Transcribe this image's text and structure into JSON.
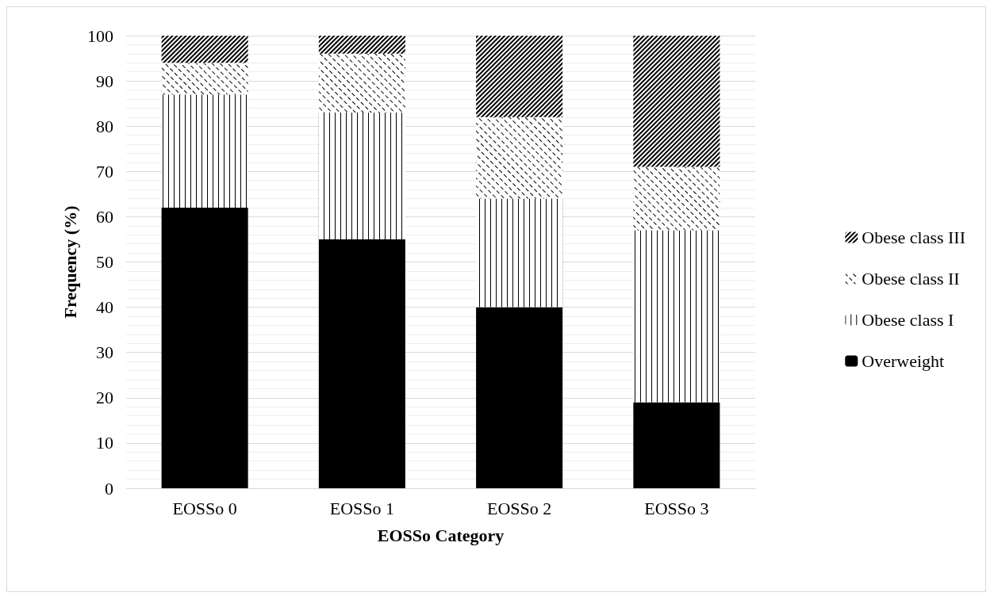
{
  "chart_data": {
    "type": "bar",
    "stacked": true,
    "xlabel": "EOSSo Category",
    "ylabel": "Frequency (%)",
    "categories": [
      "EOSSo 0",
      "EOSSo 1",
      "EOSSo 2",
      "EOSSo 3"
    ],
    "series": [
      {
        "name": "Overweight",
        "color": "#000000",
        "values": [
          62,
          55,
          40,
          19
        ]
      },
      {
        "name": "Obese class I",
        "color": "#000000",
        "values": [
          25,
          28,
          24,
          38
        ]
      },
      {
        "name": "Obese class II",
        "color": "#000000",
        "values": [
          7,
          13,
          18,
          14
        ]
      },
      {
        "name": "Obese class III",
        "color": "#000000",
        "values": [
          6,
          4,
          18,
          29
        ]
      }
    ],
    "ylim": [
      0,
      100
    ],
    "yticks": [
      0,
      10,
      20,
      30,
      40,
      50,
      60,
      70,
      80,
      90,
      100
    ],
    "grid": "y",
    "legend": "right"
  }
}
